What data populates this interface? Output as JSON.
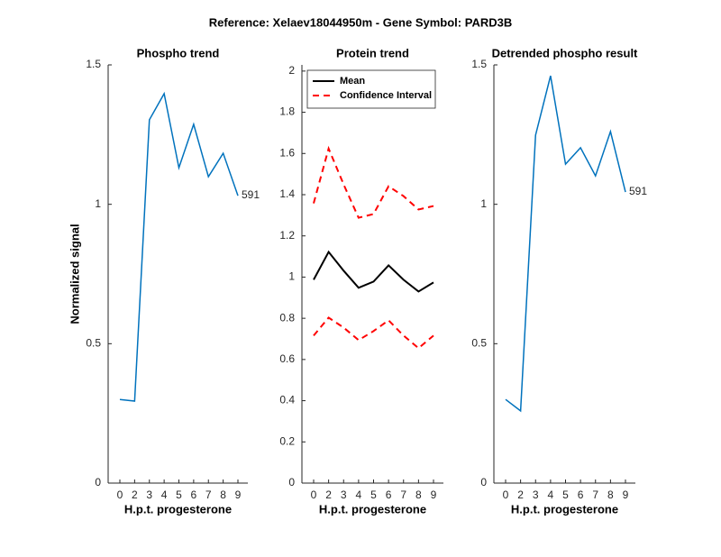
{
  "title": "Reference:  Xelaev18044950m - Gene Symbol:  PARD3B",
  "chart_data": [
    {
      "type": "line",
      "title": "Phospho trend",
      "xlabel": "H.p.t. progesterone",
      "ylabel": "Normalized signal",
      "categories": [
        "0",
        "2",
        "3",
        "4",
        "5",
        "6",
        "7",
        "8",
        "9"
      ],
      "series": [
        {
          "color": "#0072bd",
          "values": [
            0.3,
            0.294,
            1.303,
            1.397,
            1.131,
            1.287,
            1.099,
            1.183,
            1.031
          ]
        }
      ],
      "annotation": "591",
      "ylim": [
        0,
        1.5
      ],
      "yticks": [
        0,
        0.5,
        1,
        1.5
      ]
    },
    {
      "type": "line",
      "title": "Protein trend",
      "xlabel": "H.p.t. progesterone",
      "categories": [
        "0",
        "2",
        "3",
        "4",
        "5",
        "6",
        "7",
        "8",
        "9"
      ],
      "series": [
        {
          "name": "Mean",
          "color": "#000000",
          "values": [
            0.987,
            1.122,
            1.031,
            0.948,
            0.978,
            1.057,
            0.987,
            0.93,
            0.974
          ]
        },
        {
          "name": "Confidence Interval",
          "color": "#ff0000",
          "dashed": true,
          "values": [
            1.358,
            1.624,
            1.45,
            1.288,
            1.306,
            1.441,
            1.393,
            1.328,
            1.345
          ],
          "lower": [
            0.716,
            0.803,
            0.755,
            0.694,
            0.738,
            0.79,
            0.716,
            0.655,
            0.716
          ]
        }
      ],
      "legend": "northwest",
      "ylim": [
        0,
        2.03
      ],
      "yticks": [
        0,
        0.2,
        0.4,
        0.6,
        0.8,
        1,
        1.2,
        1.4,
        1.6,
        1.8,
        2
      ]
    },
    {
      "type": "line",
      "title": "Detrended phospho result",
      "xlabel": "H.p.t. progesterone",
      "categories": [
        "0",
        "2",
        "3",
        "4",
        "5",
        "6",
        "7",
        "8",
        "9"
      ],
      "series": [
        {
          "color": "#0072bd",
          "values": [
            0.3,
            0.259,
            1.248,
            1.461,
            1.144,
            1.203,
            1.102,
            1.261,
            1.044
          ]
        }
      ],
      "annotation": "591",
      "ylim": [
        0,
        1.5
      ],
      "yticks": [
        0,
        0.5,
        1,
        1.5
      ]
    }
  ]
}
